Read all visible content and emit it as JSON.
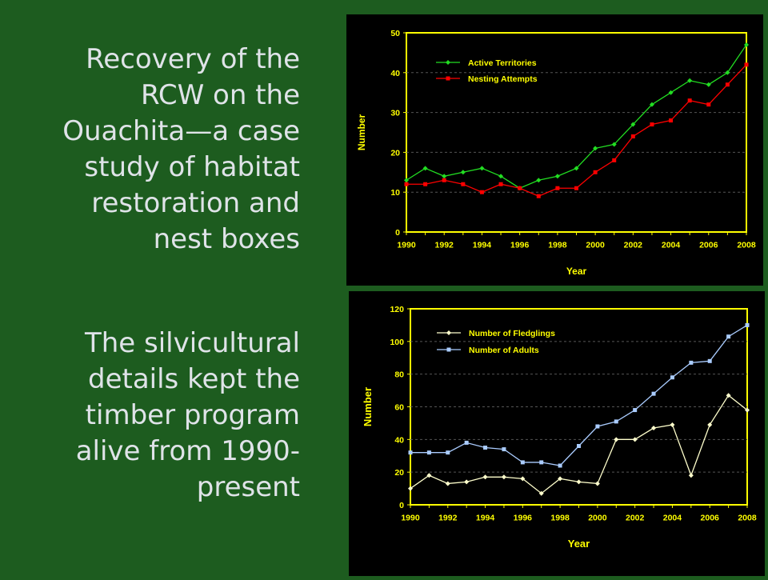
{
  "slide": {
    "title_lines": [
      "Recovery of the",
      "RCW on the",
      "Ouachita—a case",
      "study of habitat",
      "restoration and",
      "nest boxes"
    ],
    "body_lines": [
      "The silvicultural",
      "details kept the",
      "timber program",
      "alive from 1990-",
      "present"
    ]
  },
  "colors": {
    "background": "#1d5c1f",
    "text": "#dfe3e8",
    "chart_bg": "#000000",
    "plot_border": "#ffff00",
    "axis_text": "#ffff00",
    "active_territories": "#22dd22",
    "nesting_attempts": "#ff0000",
    "fledglings": "#ffffcc",
    "adults": "#aaccff"
  },
  "chart_data": [
    {
      "type": "line",
      "xlabel": "Year",
      "ylabel": "Number",
      "xlim": [
        1990,
        2008
      ],
      "ylim": [
        0,
        50
      ],
      "xticks": [
        "1990",
        "1992",
        "1994",
        "1996",
        "1998",
        "2000",
        "2002",
        "2004",
        "2006",
        "2008"
      ],
      "yticks": [
        "0",
        "10",
        "20",
        "30",
        "40",
        "50"
      ],
      "grid": "horizontal dashed",
      "legend": "top-left",
      "x": [
        1990,
        1991,
        1992,
        1993,
        1994,
        1995,
        1996,
        1997,
        1998,
        1999,
        2000,
        2001,
        2002,
        2003,
        2004,
        2005,
        2006,
        2007,
        2008
      ],
      "series": [
        {
          "name": "Active Territories",
          "marker": "diamond",
          "color_key": "active_territories",
          "values": [
            13,
            16,
            14,
            15,
            16,
            14,
            11,
            13,
            14,
            16,
            21,
            22,
            27,
            32,
            35,
            38,
            37,
            40,
            47
          ]
        },
        {
          "name": "Nesting Attempts",
          "marker": "square",
          "color_key": "nesting_attempts",
          "values": [
            12,
            12,
            13,
            12,
            10,
            12,
            11,
            9,
            11,
            11,
            15,
            18,
            24,
            27,
            28,
            33,
            32,
            37,
            42
          ]
        }
      ]
    },
    {
      "type": "line",
      "xlabel": "Year",
      "ylabel": "Number",
      "xlim": [
        1990,
        2008
      ],
      "ylim": [
        0,
        120
      ],
      "xticks": [
        "1990",
        "1992",
        "1994",
        "1996",
        "1998",
        "2000",
        "2002",
        "2004",
        "2006",
        "2008"
      ],
      "yticks": [
        "0",
        "20",
        "40",
        "60",
        "80",
        "100",
        "120"
      ],
      "grid": "horizontal dashed",
      "legend": "top-left",
      "x": [
        1990,
        1991,
        1992,
        1993,
        1994,
        1995,
        1996,
        1997,
        1998,
        1999,
        2000,
        2001,
        2002,
        2003,
        2004,
        2005,
        2006,
        2007,
        2008
      ],
      "series": [
        {
          "name": "Number of Fledglings",
          "marker": "diamond",
          "color_key": "fledglings",
          "values": [
            10,
            18,
            13,
            14,
            17,
            17,
            16,
            7,
            16,
            14,
            13,
            40,
            40,
            47,
            49,
            18,
            49,
            67,
            58
          ]
        },
        {
          "name": "Number of Adults",
          "marker": "square",
          "color_key": "adults",
          "values": [
            32,
            32,
            32,
            38,
            35,
            34,
            26,
            26,
            24,
            36,
            48,
            51,
            58,
            68,
            78,
            87,
            88,
            103,
            110
          ]
        }
      ]
    }
  ]
}
